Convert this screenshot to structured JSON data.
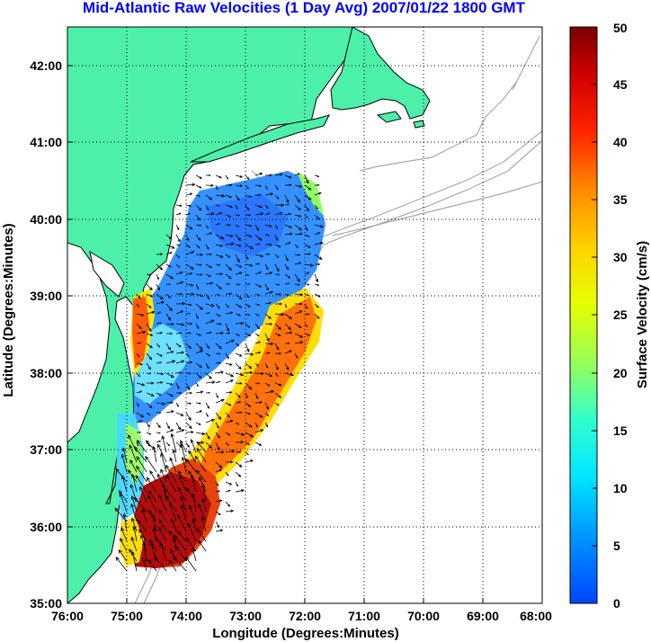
{
  "title": "Mid-Atlantic Raw Velocities (1 Day Avg) 2007/01/22 1800 GMT",
  "x_axis": {
    "label": "Longitude (Degrees:Minutes)",
    "ticks": [
      "76:00",
      "75:00",
      "74:00",
      "73:00",
      "72:00",
      "71:00",
      "70:00",
      "69:00",
      "68:00"
    ]
  },
  "y_axis": {
    "label": "Latitude (Degrees:Minutes)",
    "ticks": [
      "42:00",
      "41:00",
      "40:00",
      "39:00",
      "38:00",
      "37:00",
      "36:00",
      "35:00"
    ]
  },
  "colorbar": {
    "label": "Surface Velocity (cm/s)",
    "ticks": [
      "50",
      "45",
      "40",
      "35",
      "30",
      "25",
      "20",
      "15",
      "10",
      "5",
      "0"
    ],
    "range": [
      0,
      50
    ]
  },
  "colors": {
    "land": "#4df0a8",
    "coastline": "#000000",
    "bathymetry": "#a9a9a9",
    "title": "#0000ff",
    "grid": "#000000"
  },
  "map_extent": {
    "lon": [
      -76,
      -68
    ],
    "lat": [
      35,
      42.5
    ]
  }
}
